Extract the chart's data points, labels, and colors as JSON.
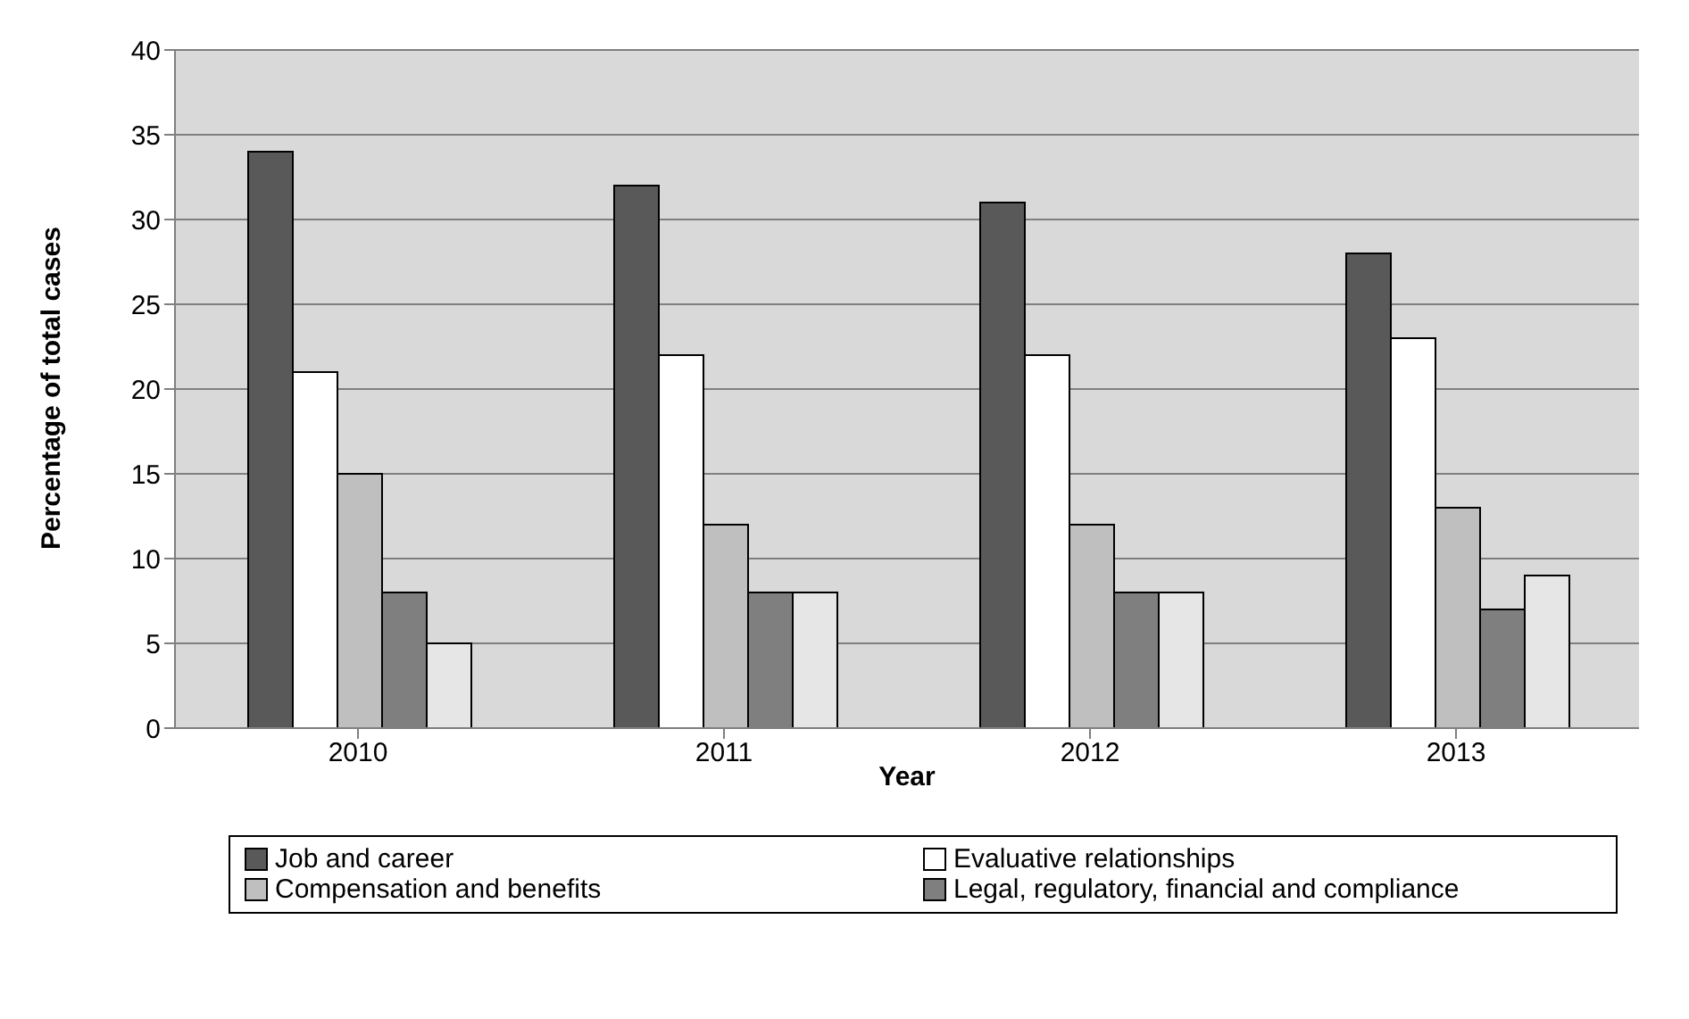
{
  "chart_data": {
    "type": "bar",
    "xlabel": "Year",
    "ylabel": "Percentage of total cases",
    "categories": [
      "2010",
      "2011",
      "2012",
      "2013"
    ],
    "series": [
      {
        "name": "Job and career",
        "color": "#595959",
        "values": [
          34,
          32,
          31,
          28
        ]
      },
      {
        "name": "Evaluative relationships",
        "color": "#ffffff",
        "values": [
          21,
          22,
          22,
          23
        ]
      },
      {
        "name": "Compensation and benefits",
        "color": "#bfbfbf",
        "values": [
          15,
          12,
          12,
          13
        ]
      },
      {
        "name": "Legal, regulatory, financial and compliance",
        "color": "#7f7f7f",
        "values": [
          8,
          8,
          8,
          7
        ]
      },
      {
        "color": "#e6e6e6",
        "values": [
          5,
          8,
          8,
          9
        ]
      }
    ],
    "ylim": [
      0,
      40
    ],
    "yticks": [
      0,
      5,
      10,
      15,
      20,
      25,
      30,
      35,
      40
    ],
    "grid": "y",
    "legend": "bottom"
  }
}
